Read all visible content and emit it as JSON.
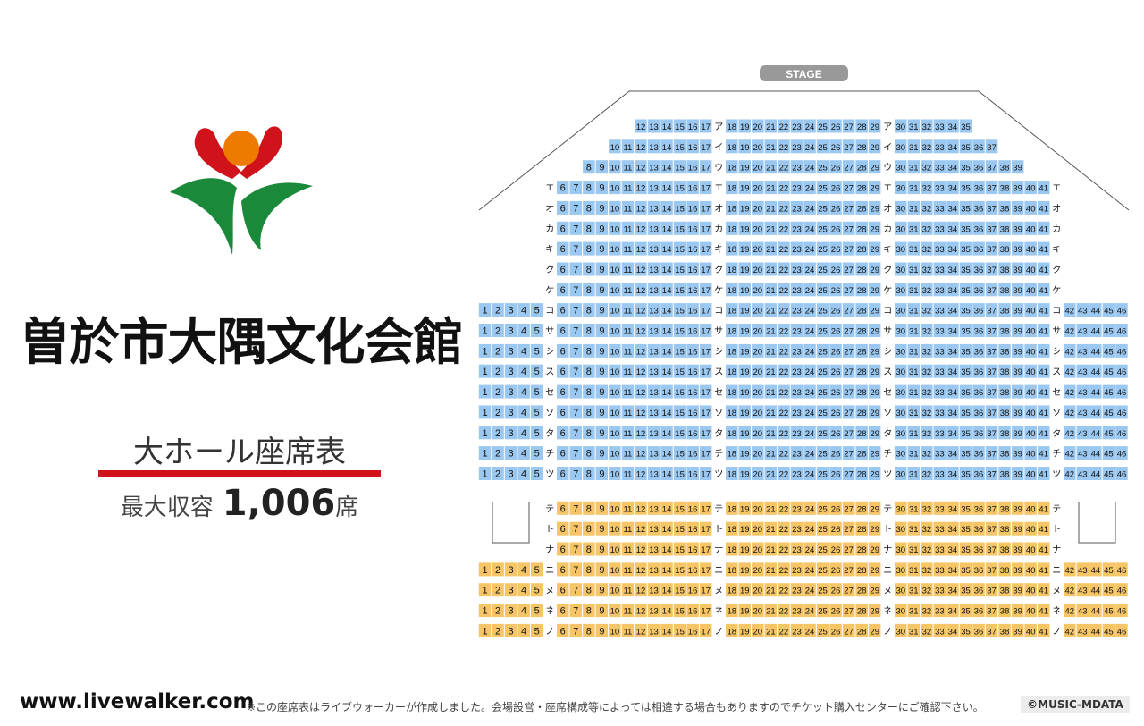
{
  "venue": {
    "name": "曽於市大隅文化会館",
    "subtitle": "大ホール座席表",
    "capacity_label": "最大収容",
    "capacity_value": "1,006",
    "capacity_unit": "席"
  },
  "stage_label": "STAGE",
  "colors": {
    "block_front": "#9bc8f0",
    "block_rear": "#f6c566",
    "stage_pill": "#999999",
    "accent_red": "#d0121b",
    "logo_red": "#d0121b",
    "logo_orange": "#ee7b00",
    "logo_green": "#1a8a3a"
  },
  "rows": [
    {
      "label": "ア",
      "block": "front",
      "left_end": false,
      "from": 12,
      "to": 35
    },
    {
      "label": "イ",
      "block": "front",
      "left_end": false,
      "from": 10,
      "to": 37
    },
    {
      "label": "ウ",
      "block": "front",
      "left_end": false,
      "from": 8,
      "to": 39
    },
    {
      "label": "エ",
      "block": "front",
      "left_end": true,
      "from": 6,
      "to": 41
    },
    {
      "label": "オ",
      "block": "front",
      "left_end": true,
      "from": 6,
      "to": 41
    },
    {
      "label": "カ",
      "block": "front",
      "left_end": true,
      "from": 6,
      "to": 41
    },
    {
      "label": "キ",
      "block": "front",
      "left_end": true,
      "from": 6,
      "to": 41
    },
    {
      "label": "ク",
      "block": "front",
      "left_end": true,
      "from": 6,
      "to": 41
    },
    {
      "label": "ケ",
      "block": "front",
      "left_end": true,
      "from": 6,
      "to": 41
    },
    {
      "label": "コ",
      "block": "front",
      "left_end": false,
      "from": 1,
      "to": 46
    },
    {
      "label": "サ",
      "block": "front",
      "left_end": false,
      "from": 1,
      "to": 46
    },
    {
      "label": "シ",
      "block": "front",
      "left_end": false,
      "from": 1,
      "to": 46
    },
    {
      "label": "ス",
      "block": "front",
      "left_end": false,
      "from": 1,
      "to": 46
    },
    {
      "label": "セ",
      "block": "front",
      "left_end": false,
      "from": 1,
      "to": 46
    },
    {
      "label": "ソ",
      "block": "front",
      "left_end": false,
      "from": 1,
      "to": 46
    },
    {
      "label": "タ",
      "block": "front",
      "left_end": false,
      "from": 1,
      "to": 46
    },
    {
      "label": "チ",
      "block": "front",
      "left_end": false,
      "from": 1,
      "to": 46
    },
    {
      "label": "ツ",
      "block": "front",
      "left_end": false,
      "from": 1,
      "to": 46
    },
    {
      "label": "テ",
      "block": "rear",
      "left_end": true,
      "from": 6,
      "to": 41
    },
    {
      "label": "ト",
      "block": "rear",
      "left_end": true,
      "from": 6,
      "to": 41
    },
    {
      "label": "ナ",
      "block": "rear",
      "left_end": true,
      "from": 6,
      "to": 41
    },
    {
      "label": "ニ",
      "block": "rear",
      "left_end": false,
      "from": 1,
      "to": 46
    },
    {
      "label": "ヌ",
      "block": "rear",
      "left_end": false,
      "from": 1,
      "to": 46
    },
    {
      "label": "ネ",
      "block": "rear",
      "left_end": false,
      "from": 1,
      "to": 46
    },
    {
      "label": "ノ",
      "block": "rear",
      "left_end": false,
      "from": 1,
      "to": 46
    }
  ],
  "footer": {
    "url": "www.livewalker.com",
    "note": "※この座席表はライブウォーカーが作成しました。会場設営・座席構成等によっては相違する場合もありますのでチケット購入センターにご確認下さい。",
    "copyright": "©MUSIC-MDATA"
  }
}
